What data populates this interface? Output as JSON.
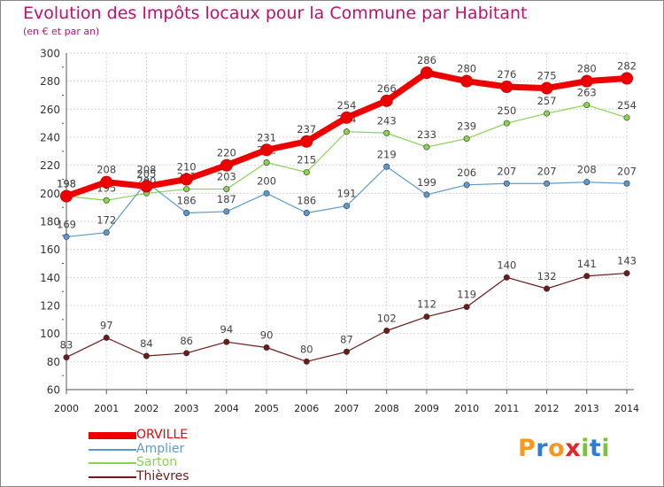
{
  "title": "Evolution des Impôts locaux pour la Commune par Habitant",
  "subtitle": "(en € et par an)",
  "logo_text": "Proxiti",
  "chart_data": {
    "type": "line",
    "x": [
      "2000",
      "2001",
      "2002",
      "2003",
      "2004",
      "2005",
      "2006",
      "2007",
      "2008",
      "2009",
      "2010",
      "2011",
      "2012",
      "2013",
      "2014"
    ],
    "ylim": [
      60,
      300
    ],
    "yticks": [
      60,
      80,
      100,
      120,
      140,
      160,
      180,
      200,
      220,
      240,
      260,
      280,
      300
    ],
    "grid": true,
    "legend_position": "bottom-left",
    "series": [
      {
        "name": "Thièvres",
        "color": "#6e1a1a",
        "values": [
          83,
          97,
          84,
          86,
          94,
          90,
          80,
          87,
          102,
          112,
          119,
          140,
          132,
          141,
          143
        ]
      },
      {
        "name": "Sarton",
        "color": "#88d44e",
        "values": [
          198,
          195,
          200,
          203,
          203,
          222,
          215,
          244,
          243,
          233,
          239,
          250,
          257,
          263,
          254
        ]
      },
      {
        "name": "Amplier",
        "color": "#5b9ad0",
        "values": [
          169,
          172,
          208,
          186,
          187,
          200,
          186,
          191,
          219,
          199,
          206,
          207,
          207,
          208,
          207
        ]
      },
      {
        "name": "ORVILLE",
        "color": "#ee0000",
        "values": [
          198,
          208,
          205,
          210,
          220,
          231,
          237,
          254,
          266,
          286,
          280,
          276,
          275,
          280,
          282
        ]
      }
    ],
    "legend_order": [
      "ORVILLE",
      "Amplier",
      "Sarton",
      "Thièvres"
    ]
  }
}
